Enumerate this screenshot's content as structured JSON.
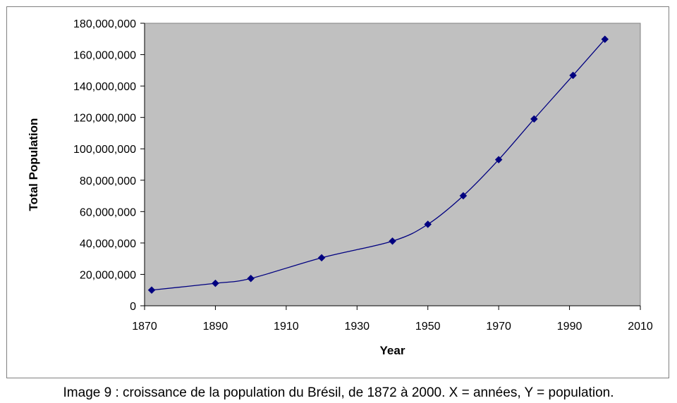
{
  "chart_data": {
    "type": "line",
    "xlabel": "Year",
    "ylabel": "Total Population",
    "xlim": [
      1870,
      2010
    ],
    "ylim": [
      0,
      180000000
    ],
    "x_ticks": [
      1870,
      1890,
      1910,
      1930,
      1950,
      1970,
      1990,
      2010
    ],
    "y_ticks": [
      0,
      20000000,
      40000000,
      60000000,
      80000000,
      100000000,
      120000000,
      140000000,
      160000000,
      180000000
    ],
    "x_tick_labels": [
      "1870",
      "1890",
      "1910",
      "1930",
      "1950",
      "1970",
      "1990",
      "2010"
    ],
    "y_tick_labels": [
      "0",
      "20,000,000",
      "40,000,000",
      "60,000,000",
      "80,000,000",
      "100,000,000",
      "120,000,000",
      "140,000,000",
      "160,000,000",
      "180,000,000"
    ],
    "grid": false,
    "legend": "none",
    "series": [
      {
        "x": [
          1872,
          1890,
          1900,
          1920,
          1940,
          1950,
          1960,
          1970,
          1980,
          1991,
          2000
        ],
        "values": [
          10000000,
          14300000,
          17400000,
          30600000,
          41200000,
          51900000,
          70100000,
          93100000,
          119000000,
          146800000,
          169800000
        ]
      }
    ],
    "colors": {
      "plot_background": "#c0c0c0",
      "line": "#000080",
      "marker": "#000080"
    }
  },
  "caption": "Image 9 : croissance de la population du Brésil, de 1872 à 2000. X = années, Y = population."
}
